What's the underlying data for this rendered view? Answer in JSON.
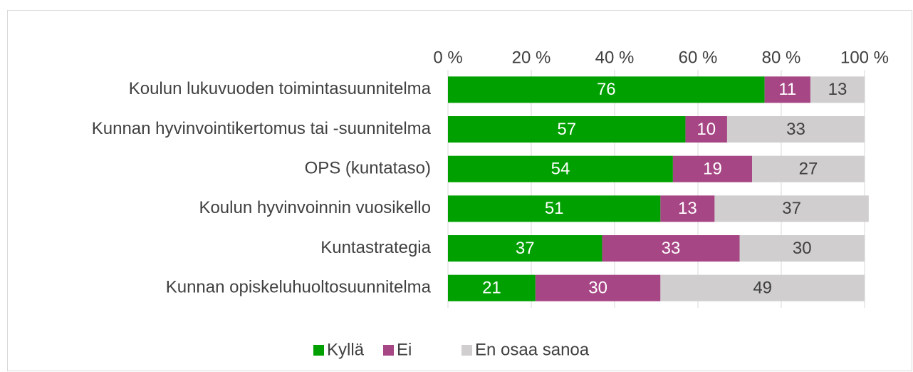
{
  "chart_data": {
    "type": "stacked_bar_horizontal",
    "categories": [
      "Koulun lukuvuoden toimintasuunnitelma",
      "Kunnan hyvinvointikertomus tai -suunnitelma",
      "OPS (kuntataso)",
      "Koulun hyvinvoinnin vuosikello",
      "Kuntastrategia",
      "Kunnan opiskeluhuoltosuunnitelma"
    ],
    "series": [
      {
        "name": "Kyllä",
        "color": "#00a000",
        "values": [
          76,
          57,
          54,
          51,
          37,
          21
        ]
      },
      {
        "name": "Ei",
        "color": "#a64685",
        "values": [
          11,
          10,
          19,
          13,
          33,
          30
        ]
      },
      {
        "name": "En osaa sanoa",
        "color": "#d0cece",
        "values": [
          13,
          33,
          27,
          37,
          30,
          49
        ]
      }
    ],
    "xlim": [
      0,
      100
    ],
    "xticks": [
      {
        "value": 0,
        "label": "0 %"
      },
      {
        "value": 20,
        "label": "20 %"
      },
      {
        "value": 40,
        "label": "40 %"
      },
      {
        "value": 60,
        "label": "60 %"
      },
      {
        "value": 80,
        "label": "80 %"
      },
      {
        "value": 100,
        "label": "100 %"
      }
    ],
    "grid": true,
    "legend": "bottom"
  }
}
